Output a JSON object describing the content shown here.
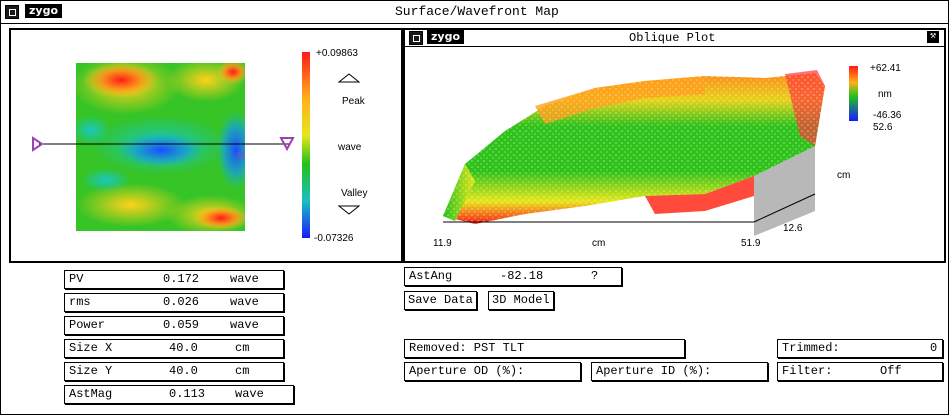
{
  "window": {
    "title": "Surface/Wavefront Map",
    "logo": "zygo"
  },
  "map": {
    "scale_top": "+0.09863",
    "scale_bottom": "-0.07326",
    "peak_label": "Peak",
    "valley_label": "Valley",
    "unit_label": "wave"
  },
  "oblique": {
    "title": "Oblique Plot",
    "logo": "zygo",
    "scale_top": "+62.41",
    "scale_unit": "nm",
    "scale_bottom": "-46.36",
    "y_top": "52.6",
    "y_unit": "cm",
    "y_bottom": "12.6",
    "x_left": "11.9",
    "x_unit": "cm",
    "x_right": "51.9"
  },
  "stats": [
    {
      "label": "PV",
      "value": "0.172",
      "unit": "wave"
    },
    {
      "label": "rms",
      "value": "0.026",
      "unit": "wave"
    },
    {
      "label": "Power",
      "value": "0.059",
      "unit": "wave"
    },
    {
      "label": "Size X",
      "value": "40.0",
      "unit": "cm"
    },
    {
      "label": "Size Y",
      "value": "40.0",
      "unit": "cm"
    },
    {
      "label": "AstMag",
      "value": "0.113",
      "unit": "wave"
    }
  ],
  "astang": {
    "label": "AstAng",
    "value": "-82.18",
    "unit": "?"
  },
  "buttons": {
    "save_data": "Save Data",
    "model_3d": "3D Model"
  },
  "removed": {
    "label": "Removed: PST TLT"
  },
  "aperture_od": {
    "label": "Aperture OD (%):"
  },
  "aperture_id": {
    "label": "Aperture ID (%):"
  },
  "trimmed": {
    "label": "Trimmed:",
    "value": "0"
  },
  "filter": {
    "label": "Filter:",
    "value": "Off"
  },
  "colors": {
    "high": "#ff1a1a",
    "mid": "#22c21a",
    "low": "#1a2cff",
    "accent": "#a040b0"
  }
}
